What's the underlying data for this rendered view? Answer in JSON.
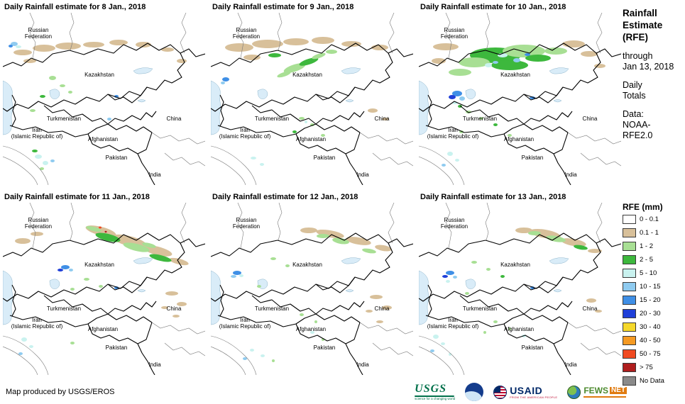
{
  "panels": [
    {
      "title": "Daily Rainfall estimate for 8 Jan., 2018",
      "patches": [
        [
          28,
          56,
          13,
          4,
          "tan"
        ],
        [
          58,
          50,
          16,
          5,
          "tan"
        ],
        [
          92,
          47,
          18,
          5,
          "tan"
        ],
        [
          128,
          45,
          15,
          4,
          "tan"
        ],
        [
          163,
          42,
          13,
          4,
          "tan"
        ],
        [
          198,
          45,
          11,
          4,
          "tan"
        ],
        [
          38,
          68,
          9,
          3,
          "tan"
        ],
        [
          232,
          52,
          9,
          3,
          "tan"
        ],
        [
          252,
          68,
          7,
          3,
          "tan"
        ],
        [
          16,
          44,
          5,
          3,
          "c10"
        ],
        [
          22,
          48,
          4,
          2,
          "c5"
        ],
        [
          11,
          47,
          3,
          2,
          "c15"
        ],
        [
          70,
          92,
          5,
          3,
          "g1"
        ],
        [
          84,
          103,
          4,
          2,
          "g1"
        ],
        [
          56,
          118,
          4,
          2,
          "g2"
        ],
        [
          42,
          138,
          4,
          2,
          "g1"
        ],
        [
          95,
          112,
          3,
          2,
          "g1"
        ],
        [
          50,
          203,
          5,
          3,
          "c5"
        ],
        [
          60,
          212,
          4,
          3,
          "c5"
        ],
        [
          45,
          195,
          4,
          2,
          "g2"
        ],
        [
          70,
          209,
          3,
          2,
          "c10"
        ],
        [
          55,
          220,
          3,
          2,
          "g1"
        ],
        [
          150,
          150,
          3,
          2,
          "c10"
        ],
        [
          160,
          118,
          3,
          2,
          "c15"
        ]
      ]
    },
    {
      "title": "Daily Rainfall estimate for 9 Jan., 2018",
      "patches": [
        [
          40,
          49,
          20,
          6,
          "tan"
        ],
        [
          80,
          44,
          22,
          6,
          "tan"
        ],
        [
          120,
          41,
          18,
          5,
          "tan"
        ],
        [
          158,
          39,
          16,
          5,
          "tan"
        ],
        [
          198,
          44,
          14,
          4,
          "tan"
        ],
        [
          238,
          49,
          12,
          4,
          "tan"
        ],
        [
          58,
          63,
          12,
          4,
          "tan"
        ],
        [
          118,
          78,
          16,
          5,
          "g1",
          -18
        ],
        [
          138,
          69,
          14,
          4,
          "g2",
          -18
        ],
        [
          103,
          87,
          10,
          3,
          "g1",
          -18
        ],
        [
          152,
          61,
          10,
          3,
          "g1",
          -18
        ],
        [
          90,
          60,
          9,
          3,
          "g2"
        ],
        [
          170,
          55,
          8,
          3,
          "g1"
        ],
        [
          21,
          94,
          5,
          3,
          "c15"
        ],
        [
          17,
          99,
          3,
          2,
          "c10"
        ],
        [
          128,
          149,
          4,
          2,
          "g1"
        ],
        [
          143,
          158,
          3,
          2,
          "g1"
        ],
        [
          118,
          168,
          3,
          2,
          "g2"
        ],
        [
          158,
          173,
          3,
          2,
          "g1"
        ],
        [
          134,
          154,
          2,
          2,
          "c5"
        ],
        [
          228,
          138,
          7,
          3,
          "tan"
        ],
        [
          246,
          150,
          5,
          2,
          "tan"
        ],
        [
          60,
          205,
          4,
          2,
          "c5"
        ],
        [
          72,
          214,
          3,
          2,
          "c5"
        ]
      ]
    },
    {
      "title": "Daily Rainfall estimate for 10 Jan., 2018",
      "patches": [
        [
          38,
          48,
          18,
          5,
          "tan"
        ],
        [
          218,
          44,
          16,
          5,
          "tan"
        ],
        [
          240,
          58,
          12,
          4,
          "tan"
        ],
        [
          28,
          68,
          10,
          4,
          "tan"
        ],
        [
          255,
          75,
          8,
          3,
          "tan"
        ],
        [
          108,
          60,
          36,
          11,
          "g2"
        ],
        [
          148,
          54,
          30,
          9,
          "g1"
        ],
        [
          78,
          70,
          22,
          7,
          "g1"
        ],
        [
          128,
          74,
          26,
          7,
          "g2"
        ],
        [
          168,
          64,
          18,
          5,
          "g2"
        ],
        [
          193,
          54,
          16,
          5,
          "g1"
        ],
        [
          58,
          84,
          16,
          5,
          "g1"
        ],
        [
          118,
          60,
          7,
          3,
          "c5"
        ],
        [
          138,
          67,
          5,
          3,
          "c10"
        ],
        [
          98,
          74,
          5,
          3,
          "c5"
        ],
        [
          153,
          59,
          4,
          2,
          "c15"
        ],
        [
          108,
          70,
          4,
          2,
          "c10"
        ],
        [
          54,
          114,
          7,
          4,
          "c15"
        ],
        [
          47,
          119,
          5,
          3,
          "c20"
        ],
        [
          61,
          121,
          4,
          3,
          "c10"
        ],
        [
          51,
          127,
          4,
          2,
          "c5"
        ],
        [
          58,
          132,
          3,
          2,
          "g2"
        ],
        [
          70,
          140,
          4,
          2,
          "g1"
        ],
        [
          88,
          149,
          3,
          2,
          "g1"
        ],
        [
          108,
          158,
          3,
          2,
          "g2"
        ],
        [
          60,
          168,
          3,
          2,
          "g1"
        ],
        [
          128,
          173,
          3,
          2,
          "g1"
        ],
        [
          44,
          199,
          4,
          3,
          "c5"
        ],
        [
          54,
          208,
          3,
          2,
          "c5"
        ],
        [
          35,
          215,
          3,
          2,
          "c10"
        ],
        [
          160,
          120,
          4,
          2,
          "c15"
        ]
      ]
    },
    {
      "title": "Daily Rainfall estimate for 11 Jan., 2018",
      "patches": [
        [
          138,
          40,
          22,
          6,
          "tan",
          14
        ],
        [
          178,
          54,
          25,
          7,
          "tan",
          14
        ],
        [
          218,
          68,
          21,
          6,
          "tan",
          14
        ],
        [
          248,
          83,
          14,
          4,
          "tan",
          14
        ],
        [
          148,
          49,
          18,
          5,
          "g2",
          14
        ],
        [
          188,
          63,
          19,
          5,
          "g1",
          14
        ],
        [
          222,
          78,
          16,
          4,
          "g2",
          14
        ],
        [
          128,
          37,
          11,
          3,
          "g1",
          14
        ],
        [
          206,
          60,
          10,
          3,
          "g1",
          14
        ],
        [
          137,
          35,
          2,
          1.5,
          "r"
        ],
        [
          145,
          41,
          1.5,
          1.2,
          "dr"
        ],
        [
          88,
          91,
          6,
          3,
          "c15"
        ],
        [
          81,
          95,
          4,
          2,
          "c20"
        ],
        [
          96,
          95,
          3,
          2,
          "c10"
        ],
        [
          28,
          54,
          11,
          4,
          "tan"
        ],
        [
          48,
          44,
          9,
          3,
          "tan"
        ],
        [
          118,
          108,
          4,
          2,
          "g1"
        ],
        [
          138,
          118,
          3,
          2,
          "g1"
        ],
        [
          98,
          122,
          3,
          2,
          "g1"
        ],
        [
          238,
          128,
          9,
          3,
          "tan"
        ],
        [
          252,
          143,
          7,
          3,
          "tan"
        ],
        [
          228,
          148,
          5,
          2,
          "tan"
        ],
        [
          244,
          160,
          5,
          2,
          "tan"
        ],
        [
          30,
          193,
          4,
          3,
          "c5"
        ],
        [
          40,
          203,
          3,
          2,
          "c5"
        ],
        [
          25,
          213,
          3,
          2,
          "c10"
        ],
        [
          98,
          198,
          3,
          2,
          "g1"
        ],
        [
          160,
          120,
          3,
          2,
          "c15"
        ]
      ]
    },
    {
      "title": "Daily Rainfall estimate for 12 Jan., 2018",
      "patches": [
        [
          168,
          44,
          20,
          5,
          "tan",
          10
        ],
        [
          208,
          54,
          18,
          5,
          "tan",
          10
        ],
        [
          243,
          64,
          12,
          4,
          "tan",
          10
        ],
        [
          138,
          39,
          12,
          4,
          "tan"
        ],
        [
          183,
          54,
          12,
          4,
          "g1",
          10
        ],
        [
          223,
          68,
          10,
          3,
          "g1",
          10
        ],
        [
          158,
          47,
          9,
          3,
          "g1"
        ],
        [
          37,
          99,
          6,
          3,
          "c15"
        ],
        [
          32,
          104,
          4,
          2,
          "c10"
        ],
        [
          43,
          103,
          3,
          2,
          "c5"
        ],
        [
          88,
          79,
          4,
          2,
          "g1"
        ],
        [
          108,
          89,
          3,
          2,
          "g1"
        ],
        [
          68,
          118,
          3,
          2,
          "g1"
        ],
        [
          233,
          133,
          9,
          3,
          "tan"
        ],
        [
          248,
          148,
          7,
          3,
          "tan"
        ],
        [
          223,
          153,
          5,
          2,
          "tan"
        ],
        [
          238,
          168,
          5,
          2,
          "tan"
        ],
        [
          58,
          208,
          3,
          2,
          "c5"
        ],
        [
          73,
          216,
          3,
          2,
          "c5"
        ],
        [
          48,
          220,
          3,
          2,
          "c10"
        ],
        [
          88,
          223,
          2,
          2,
          "g1"
        ],
        [
          128,
          158,
          3,
          2,
          "g1"
        ],
        [
          148,
          168,
          2,
          2,
          "g1"
        ],
        [
          143,
          183,
          3,
          2,
          "c5"
        ],
        [
          158,
          193,
          2,
          2,
          "g1"
        ]
      ]
    },
    {
      "title": "Daily Rainfall estimate for 13 Jan., 2018",
      "patches": [
        [
          178,
          44,
          22,
          6,
          "tan",
          10
        ],
        [
          218,
          56,
          18,
          5,
          "tan",
          10
        ],
        [
          148,
          39,
          12,
          4,
          "tan"
        ],
        [
          248,
          68,
          10,
          3,
          "tan"
        ],
        [
          193,
          51,
          14,
          4,
          "g1",
          10
        ],
        [
          228,
          63,
          10,
          3,
          "g2",
          10
        ],
        [
          163,
          43,
          9,
          3,
          "g1"
        ],
        [
          44,
          99,
          6,
          3,
          "c15"
        ],
        [
          37,
          104,
          4,
          2,
          "c20"
        ],
        [
          51,
          105,
          3,
          2,
          "c10"
        ],
        [
          41,
          111,
          3,
          2,
          "c5"
        ],
        [
          78,
          84,
          4,
          2,
          "g1"
        ],
        [
          98,
          94,
          3,
          2,
          "g1"
        ],
        [
          118,
          104,
          3,
          2,
          "g2"
        ],
        [
          68,
          128,
          3,
          2,
          "g1"
        ],
        [
          243,
          138,
          7,
          3,
          "tan"
        ],
        [
          253,
          153,
          5,
          2,
          "tan"
        ],
        [
          24,
          189,
          4,
          3,
          "c5"
        ],
        [
          34,
          199,
          3,
          2,
          "c5"
        ],
        [
          19,
          209,
          3,
          2,
          "c10"
        ],
        [
          44,
          214,
          2,
          2,
          "c5"
        ],
        [
          108,
          168,
          3,
          2,
          "g1"
        ],
        [
          128,
          178,
          2,
          2,
          "g1"
        ],
        [
          148,
          188,
          3,
          2,
          "c5"
        ],
        [
          93,
          183,
          2,
          2,
          "g1"
        ],
        [
          160,
          120,
          3,
          2,
          "c15"
        ]
      ]
    }
  ],
  "map_labels": [
    [
      "Russian",
      "Federation"
    ],
    [
      "Kazakhstan"
    ],
    [
      "Turkmenistan"
    ],
    [
      "Iran",
      "(Islamic Republic of)"
    ],
    [
      "Afghanistan"
    ],
    [
      "Pakistan"
    ],
    [
      "India"
    ],
    [
      "China"
    ]
  ],
  "colors": {
    "w": "#FFFFFF",
    "tan": "#D8C09A",
    "g1": "#A8DF94",
    "g2": "#3DB83D",
    "c5": "#C9F2EF",
    "c10": "#8FCBF0",
    "c15": "#3F8FE6",
    "c20": "#1F3FD8",
    "y": "#F5D82B",
    "o": "#F59A23",
    "r": "#F04A21",
    "dr": "#AF1E1E",
    "nd": "#8A8A8A"
  },
  "sidebar": {
    "title_lines": [
      "Rainfall",
      "Estimate",
      "(RFE)"
    ],
    "through_lines": [
      "through",
      "Jan 13, 2018"
    ],
    "totals_lines": [
      "Daily",
      "Totals"
    ],
    "data_lines": [
      "Data:",
      "NOAA-",
      "RFE2.0"
    ]
  },
  "legend": {
    "title": "RFE (mm)",
    "items": [
      {
        "label": "0 - 0.1",
        "color": "#FFFFFF"
      },
      {
        "label": "0.1 - 1",
        "color": "#D8C09A"
      },
      {
        "label": "1 - 2",
        "color": "#A8DF94"
      },
      {
        "label": "2 - 5",
        "color": "#3DB83D"
      },
      {
        "label": "5 - 10",
        "color": "#C9F2EF"
      },
      {
        "label": "10 - 15",
        "color": "#8FCBF0"
      },
      {
        "label": "15 - 20",
        "color": "#3F8FE6"
      },
      {
        "label": "20 - 30",
        "color": "#1F3FD8"
      },
      {
        "label": "30 - 40",
        "color": "#F5D82B"
      },
      {
        "label": "40 - 50",
        "color": "#F59A23"
      },
      {
        "label": "50 - 75",
        "color": "#F04A21"
      },
      {
        "label": "> 75",
        "color": "#AF1E1E"
      },
      {
        "label": "No Data",
        "color": "#8A8A8A"
      }
    ]
  },
  "footer": {
    "credit": "Map produced by USGS/EROS",
    "logos": {
      "usgs": "USGS",
      "usgs_tag": "science for a changing world",
      "usaid": "USAID",
      "usaid_tag": "FROM THE AMERICAN PEOPLE",
      "fewsnet_f": "FEWS",
      "fewsnet_n": "NET"
    }
  }
}
